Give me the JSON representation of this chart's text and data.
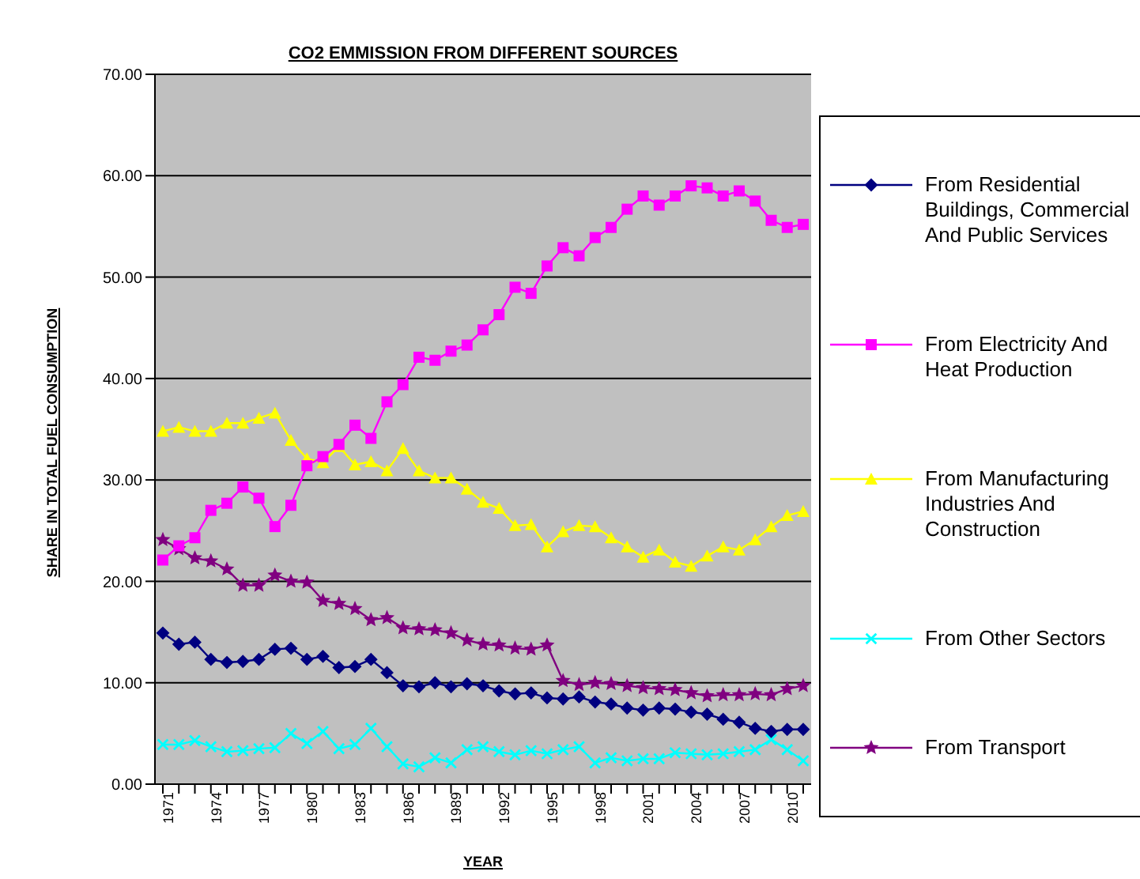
{
  "chart_data": {
    "type": "line",
    "title": "CO2 EMMISSION FROM DIFFERENT SOURCES",
    "xlabel": "YEAR",
    "ylabel": "SHARE  IN TOTAL FUEL  CONSUMPTION",
    "categories": [
      "1971",
      null,
      null,
      "1974",
      null,
      null,
      "1977",
      null,
      null,
      "1980",
      null,
      null,
      "1983",
      null,
      null,
      "1986",
      null,
      null,
      "1989",
      null,
      null,
      "1992",
      null,
      null,
      "1995",
      null,
      null,
      "1998",
      null,
      null,
      "2001",
      null,
      null,
      "2004",
      null,
      null,
      "2007",
      null,
      null,
      "2010",
      null
    ],
    "series": [
      {
        "name": "From Residential Buildings, Commercial And Public Services",
        "color": "#000080",
        "marker": "diamond",
        "values": [
          14.9,
          13.8,
          14.0,
          12.3,
          12.0,
          12.1,
          12.3,
          13.3,
          13.4,
          12.3,
          12.6,
          11.5,
          11.6,
          12.3,
          11.0,
          9.7,
          9.6,
          10.0,
          9.6,
          9.9,
          9.7,
          9.2,
          8.9,
          9.0,
          8.5,
          8.4,
          8.6,
          8.1,
          7.9,
          7.5,
          7.3,
          7.5,
          7.4,
          7.1,
          6.9,
          6.4,
          6.1,
          5.5,
          5.2,
          5.4,
          5.4
        ]
      },
      {
        "name": "From Electricity And Heat Production",
        "color": "#ff00ff",
        "marker": "square",
        "values": [
          22.1,
          23.5,
          24.3,
          27.0,
          27.7,
          29.3,
          28.2,
          25.4,
          27.5,
          31.4,
          32.3,
          33.5,
          35.4,
          34.1,
          37.7,
          39.4,
          42.1,
          41.8,
          42.7,
          43.3,
          44.8,
          46.3,
          49.0,
          48.4,
          51.1,
          52.9,
          52.1,
          53.9,
          54.9,
          56.7,
          58.0,
          57.1,
          58.0,
          59.0,
          58.8,
          58.0,
          58.5,
          57.5,
          55.6,
          54.9,
          55.2
        ]
      },
      {
        "name": "From Manufacturing Industries And Construction",
        "color": "#ffff00",
        "marker": "triangle",
        "values": [
          34.8,
          35.2,
          34.8,
          34.8,
          35.6,
          35.6,
          36.1,
          36.6,
          33.9,
          32.1,
          31.7,
          33.3,
          31.5,
          31.8,
          30.9,
          33.1,
          30.9,
          30.2,
          30.2,
          29.1,
          27.8,
          27.2,
          25.5,
          25.6,
          23.4,
          24.9,
          25.5,
          25.4,
          24.3,
          23.4,
          22.4,
          23.1,
          21.9,
          21.5,
          22.5,
          23.4,
          23.1,
          24.1,
          25.4,
          26.5,
          26.9
        ]
      },
      {
        "name": "From Other Sectors",
        "color": "#00ffff",
        "marker": "cross",
        "values": [
          3.9,
          3.9,
          4.3,
          3.7,
          3.2,
          3.3,
          3.5,
          3.6,
          5.0,
          4.0,
          5.2,
          3.5,
          3.9,
          5.5,
          3.7,
          2.0,
          1.7,
          2.6,
          2.1,
          3.4,
          3.7,
          3.2,
          2.9,
          3.3,
          3.0,
          3.4,
          3.7,
          2.1,
          2.6,
          2.3,
          2.5,
          2.5,
          3.1,
          3.0,
          2.9,
          3.0,
          3.2,
          3.4,
          4.4,
          3.4,
          2.3
        ]
      },
      {
        "name": "From Transport",
        "color": "#800080",
        "marker": "star",
        "values": [
          24.1,
          23.2,
          22.3,
          22.0,
          21.2,
          19.6,
          19.6,
          20.6,
          20.0,
          19.9,
          18.1,
          17.8,
          17.3,
          16.2,
          16.4,
          15.4,
          15.3,
          15.2,
          14.9,
          14.2,
          13.8,
          13.7,
          13.4,
          13.3,
          13.7,
          10.2,
          9.8,
          10.0,
          9.9,
          9.7,
          9.5,
          9.4,
          9.3,
          9.0,
          8.7,
          8.8,
          8.8,
          8.9,
          8.8,
          9.4,
          9.7
        ]
      }
    ],
    "ylim": [
      0,
      70
    ],
    "yticks": [
      {
        "value": 0,
        "label": "0.00"
      },
      {
        "value": 10,
        "label": "10.00"
      },
      {
        "value": 20,
        "label": "20.00"
      },
      {
        "value": 30,
        "label": "30.00"
      },
      {
        "value": 40,
        "label": "40.00"
      },
      {
        "value": 50,
        "label": "50.00"
      },
      {
        "value": 60,
        "label": "60.00"
      },
      {
        "value": 70,
        "label": "70.00"
      }
    ],
    "grid": "y",
    "legend": "right",
    "line_style": "solid"
  }
}
